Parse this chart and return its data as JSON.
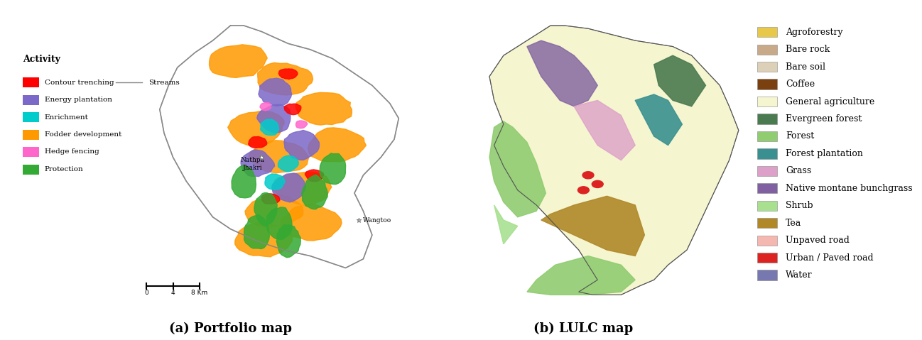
{
  "figsize": [
    12.98,
    4.79
  ],
  "dpi": 100,
  "background_color": "#ffffff",
  "caption_a": "(a) Portfolio map",
  "caption_b": "(b) LULC map",
  "caption_fontsize": 13,
  "caption_fontweight": "bold",
  "activity_title": "Activity",
  "activity_legend": [
    {
      "label": "Contour trenching",
      "color": "#ff0000"
    },
    {
      "label": "Energy plantation",
      "color": "#7b68c8"
    },
    {
      "label": "Enrichment",
      "color": "#00cccc"
    },
    {
      "label": "Fodder development",
      "color": "#ff9900"
    },
    {
      "label": "Hedge fencing",
      "color": "#ff66cc"
    },
    {
      "label": "Protection",
      "color": "#33aa33"
    }
  ],
  "streams_label": "Streams",
  "streams_color": "#888888",
  "lulc_legend": [
    {
      "label": "Agroforestry",
      "color": "#e8c84a"
    },
    {
      "label": "Bare rock",
      "color": "#c8aa88"
    },
    {
      "label": "Bare soil",
      "color": "#ddd0b8"
    },
    {
      "label": "Coffee",
      "color": "#7b4010"
    },
    {
      "label": "General agriculture",
      "color": "#f5f5d0"
    },
    {
      "label": "Evergreen forest",
      "color": "#4a7a50"
    },
    {
      "label": "Forest",
      "color": "#90cc70"
    },
    {
      "label": "Forest plantation",
      "color": "#3a9090"
    },
    {
      "label": "Grass",
      "color": "#dda0c8"
    },
    {
      "label": "Native montane bunchgrass",
      "color": "#8060a0"
    },
    {
      "label": "Shrub",
      "color": "#a8e090"
    },
    {
      "label": "Tea",
      "color": "#b08828"
    },
    {
      "label": "Unpaved road",
      "color": "#f5b8b0"
    },
    {
      "label": "Urban / Paved road",
      "color": "#dd2222"
    },
    {
      "label": "Water",
      "color": "#7878b0"
    }
  ],
  "legend_fontsize": 9
}
